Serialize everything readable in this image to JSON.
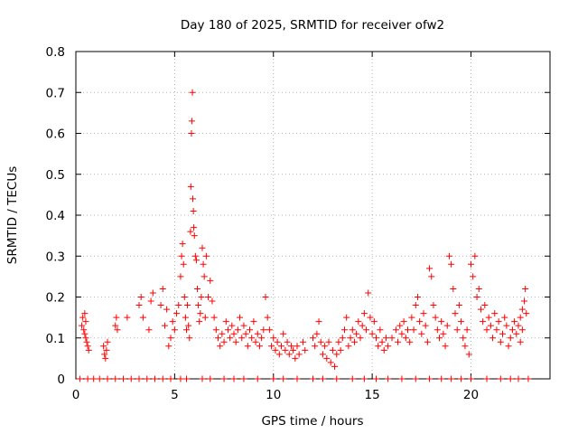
{
  "chart_data": {
    "type": "scatter",
    "title": "Day 180 of 2025, SRMTID for receiver ofw2",
    "xlabel": "GPS time / hours",
    "ylabel": "SRMTID / TECUs",
    "xlim": [
      0,
      24
    ],
    "ylim": [
      0,
      0.8
    ],
    "xticks": [
      0,
      5,
      10,
      15,
      20
    ],
    "xtick_labels": [
      "0",
      "5",
      "10",
      "15",
      "20"
    ],
    "yticks": [
      0,
      0.1,
      0.2,
      0.3,
      0.4,
      0.5,
      0.6,
      0.7,
      0.8
    ],
    "ytick_labels": [
      "0",
      "0.1",
      "0.2",
      "0.3",
      "0.4",
      "0.5",
      "0.6",
      "0.7",
      "0.8"
    ],
    "grid": true,
    "marker": "+",
    "color": "#ff0000",
    "series": [
      {
        "name": "SRMTID",
        "points": [
          [
            0.3,
            0.13
          ],
          [
            0.35,
            0.15
          ],
          [
            0.4,
            0.12
          ],
          [
            0.45,
            0.16
          ],
          [
            0.5,
            0.1
          ],
          [
            0.55,
            0.09
          ],
          [
            0.6,
            0.08
          ],
          [
            0.65,
            0.07
          ],
          [
            0.5,
            0.14
          ],
          [
            0.45,
            0.11
          ],
          [
            1.4,
            0.08
          ],
          [
            1.45,
            0.06
          ],
          [
            1.5,
            0.05
          ],
          [
            1.55,
            0.07
          ],
          [
            1.6,
            0.09
          ],
          [
            2.0,
            0.13
          ],
          [
            2.05,
            0.15
          ],
          [
            2.1,
            0.12
          ],
          [
            2.6,
            0.15
          ],
          [
            3.2,
            0.18
          ],
          [
            3.3,
            0.2
          ],
          [
            3.4,
            0.15
          ],
          [
            3.7,
            0.12
          ],
          [
            3.8,
            0.19
          ],
          [
            3.9,
            0.21
          ],
          [
            4.3,
            0.18
          ],
          [
            4.4,
            0.22
          ],
          [
            4.5,
            0.13
          ],
          [
            4.6,
            0.17
          ],
          [
            4.7,
            0.08
          ],
          [
            4.8,
            0.1
          ],
          [
            4.9,
            0.14
          ],
          [
            5.0,
            0.12
          ],
          [
            5.1,
            0.16
          ],
          [
            5.2,
            0.18
          ],
          [
            5.3,
            0.25
          ],
          [
            5.35,
            0.3
          ],
          [
            5.4,
            0.33
          ],
          [
            5.45,
            0.28
          ],
          [
            5.5,
            0.2
          ],
          [
            5.55,
            0.15
          ],
          [
            5.6,
            0.12
          ],
          [
            5.65,
            0.18
          ],
          [
            5.7,
            0.13
          ],
          [
            5.75,
            0.1
          ],
          [
            5.8,
            0.36
          ],
          [
            5.82,
            0.47
          ],
          [
            5.85,
            0.6
          ],
          [
            5.87,
            0.63
          ],
          [
            5.9,
            0.7
          ],
          [
            5.92,
            0.44
          ],
          [
            5.95,
            0.41
          ],
          [
            5.97,
            0.37
          ],
          [
            6.0,
            0.35
          ],
          [
            6.05,
            0.3
          ],
          [
            6.1,
            0.29
          ],
          [
            6.15,
            0.22
          ],
          [
            6.2,
            0.18
          ],
          [
            6.25,
            0.14
          ],
          [
            6.3,
            0.16
          ],
          [
            6.35,
            0.2
          ],
          [
            6.4,
            0.32
          ],
          [
            6.45,
            0.28
          ],
          [
            6.5,
            0.25
          ],
          [
            6.55,
            0.15
          ],
          [
            6.6,
            0.3
          ],
          [
            6.7,
            0.2
          ],
          [
            6.8,
            0.24
          ],
          [
            6.9,
            0.19
          ],
          [
            7.0,
            0.15
          ],
          [
            7.1,
            0.12
          ],
          [
            7.2,
            0.1
          ],
          [
            7.3,
            0.08
          ],
          [
            7.4,
            0.11
          ],
          [
            7.5,
            0.09
          ],
          [
            7.6,
            0.14
          ],
          [
            7.7,
            0.12
          ],
          [
            7.8,
            0.1
          ],
          [
            7.9,
            0.13
          ],
          [
            8.0,
            0.11
          ],
          [
            8.1,
            0.09
          ],
          [
            8.2,
            0.12
          ],
          [
            8.3,
            0.15
          ],
          [
            8.4,
            0.1
          ],
          [
            8.5,
            0.13
          ],
          [
            8.6,
            0.11
          ],
          [
            8.7,
            0.08
          ],
          [
            8.8,
            0.12
          ],
          [
            8.9,
            0.1
          ],
          [
            9.0,
            0.14
          ],
          [
            9.1,
            0.09
          ],
          [
            9.2,
            0.11
          ],
          [
            9.3,
            0.08
          ],
          [
            9.4,
            0.1
          ],
          [
            9.5,
            0.12
          ],
          [
            9.6,
            0.2
          ],
          [
            9.7,
            0.15
          ],
          [
            9.8,
            0.12
          ],
          [
            9.9,
            0.08
          ],
          [
            10.0,
            0.1
          ],
          [
            10.1,
            0.07
          ],
          [
            10.2,
            0.09
          ],
          [
            10.3,
            0.06
          ],
          [
            10.4,
            0.08
          ],
          [
            10.5,
            0.11
          ],
          [
            10.6,
            0.07
          ],
          [
            10.7,
            0.09
          ],
          [
            10.8,
            0.06
          ],
          [
            10.9,
            0.08
          ],
          [
            11.0,
            0.07
          ],
          [
            11.1,
            0.05
          ],
          [
            11.2,
            0.08
          ],
          [
            11.3,
            0.06
          ],
          [
            11.5,
            0.09
          ],
          [
            11.6,
            0.07
          ],
          [
            12.0,
            0.1
          ],
          [
            12.1,
            0.08
          ],
          [
            12.2,
            0.11
          ],
          [
            12.3,
            0.14
          ],
          [
            12.4,
            0.09
          ],
          [
            12.5,
            0.06
          ],
          [
            12.6,
            0.08
          ],
          [
            12.7,
            0.05
          ],
          [
            12.8,
            0.09
          ],
          [
            12.9,
            0.04
          ],
          [
            13.0,
            0.07
          ],
          [
            13.1,
            0.03
          ],
          [
            13.2,
            0.06
          ],
          [
            13.3,
            0.09
          ],
          [
            13.4,
            0.07
          ],
          [
            13.5,
            0.1
          ],
          [
            13.6,
            0.12
          ],
          [
            13.7,
            0.15
          ],
          [
            13.8,
            0.08
          ],
          [
            13.9,
            0.1
          ],
          [
            14.0,
            0.12
          ],
          [
            14.1,
            0.09
          ],
          [
            14.2,
            0.11
          ],
          [
            14.3,
            0.14
          ],
          [
            14.4,
            0.1
          ],
          [
            14.5,
            0.13
          ],
          [
            14.6,
            0.16
          ],
          [
            14.7,
            0.12
          ],
          [
            14.8,
            0.21
          ],
          [
            14.9,
            0.15
          ],
          [
            15.0,
            0.11
          ],
          [
            15.1,
            0.14
          ],
          [
            15.2,
            0.1
          ],
          [
            15.3,
            0.08
          ],
          [
            15.4,
            0.12
          ],
          [
            15.5,
            0.09
          ],
          [
            15.6,
            0.07
          ],
          [
            15.7,
            0.1
          ],
          [
            15.8,
            0.08
          ],
          [
            16.0,
            0.1
          ],
          [
            16.2,
            0.12
          ],
          [
            16.3,
            0.09
          ],
          [
            16.4,
            0.13
          ],
          [
            16.5,
            0.11
          ],
          [
            16.6,
            0.14
          ],
          [
            16.7,
            0.1
          ],
          [
            16.8,
            0.12
          ],
          [
            16.9,
            0.09
          ],
          [
            17.0,
            0.15
          ],
          [
            17.1,
            0.12
          ],
          [
            17.2,
            0.18
          ],
          [
            17.3,
            0.2
          ],
          [
            17.4,
            0.14
          ],
          [
            17.5,
            0.11
          ],
          [
            17.6,
            0.16
          ],
          [
            17.7,
            0.13
          ],
          [
            17.8,
            0.09
          ],
          [
            17.9,
            0.27
          ],
          [
            18.0,
            0.25
          ],
          [
            18.1,
            0.18
          ],
          [
            18.2,
            0.15
          ],
          [
            18.3,
            0.12
          ],
          [
            18.4,
            0.1
          ],
          [
            18.5,
            0.14
          ],
          [
            18.6,
            0.11
          ],
          [
            18.7,
            0.08
          ],
          [
            18.8,
            0.13
          ],
          [
            18.9,
            0.3
          ],
          [
            19.0,
            0.28
          ],
          [
            19.1,
            0.22
          ],
          [
            19.2,
            0.16
          ],
          [
            19.3,
            0.12
          ],
          [
            19.4,
            0.18
          ],
          [
            19.5,
            0.14
          ],
          [
            19.6,
            0.1
          ],
          [
            19.7,
            0.08
          ],
          [
            19.8,
            0.12
          ],
          [
            19.9,
            0.06
          ],
          [
            20.0,
            0.28
          ],
          [
            20.1,
            0.25
          ],
          [
            20.2,
            0.3
          ],
          [
            20.3,
            0.2
          ],
          [
            20.4,
            0.22
          ],
          [
            20.5,
            0.17
          ],
          [
            20.6,
            0.14
          ],
          [
            20.7,
            0.18
          ],
          [
            20.8,
            0.12
          ],
          [
            20.9,
            0.15
          ],
          [
            21.0,
            0.13
          ],
          [
            21.1,
            0.1
          ],
          [
            21.2,
            0.16
          ],
          [
            21.3,
            0.12
          ],
          [
            21.4,
            0.14
          ],
          [
            21.5,
            0.09
          ],
          [
            21.6,
            0.11
          ],
          [
            21.7,
            0.15
          ],
          [
            21.8,
            0.13
          ],
          [
            21.9,
            0.08
          ],
          [
            22.0,
            0.1
          ],
          [
            22.1,
            0.12
          ],
          [
            22.2,
            0.14
          ],
          [
            22.3,
            0.11
          ],
          [
            22.4,
            0.13
          ],
          [
            22.5,
            0.15
          ],
          [
            22.6,
            0.17
          ],
          [
            22.7,
            0.19
          ],
          [
            22.75,
            0.22
          ],
          [
            22.8,
            0.16
          ],
          [
            22.5,
            0.09
          ],
          [
            22.6,
            0.12
          ],
          [
            0.2,
            0
          ],
          [
            0.6,
            0
          ],
          [
            0.9,
            0
          ],
          [
            1.2,
            0
          ],
          [
            1.6,
            0
          ],
          [
            2.0,
            0
          ],
          [
            2.4,
            0
          ],
          [
            2.8,
            0
          ],
          [
            3.2,
            0
          ],
          [
            3.6,
            0
          ],
          [
            4.0,
            0
          ],
          [
            4.4,
            0
          ],
          [
            4.8,
            0
          ],
          [
            5.3,
            0
          ],
          [
            5.6,
            0
          ],
          [
            6.4,
            0
          ],
          [
            6.8,
            0
          ],
          [
            7.5,
            0
          ],
          [
            8.0,
            0
          ],
          [
            8.5,
            0
          ],
          [
            9.2,
            0
          ],
          [
            10.0,
            0
          ],
          [
            10.5,
            0
          ],
          [
            11.2,
            0
          ],
          [
            12.0,
            0
          ],
          [
            12.5,
            0
          ],
          [
            13.2,
            0
          ],
          [
            14.0,
            0
          ],
          [
            14.6,
            0
          ],
          [
            15.2,
            0
          ],
          [
            15.8,
            0
          ],
          [
            16.5,
            0
          ],
          [
            17.2,
            0
          ],
          [
            17.9,
            0
          ],
          [
            18.5,
            0
          ],
          [
            19.0,
            0
          ],
          [
            19.5,
            0
          ],
          [
            20.0,
            0
          ],
          [
            20.8,
            0
          ],
          [
            21.5,
            0
          ],
          [
            22.0,
            0
          ],
          [
            22.4,
            0
          ],
          [
            22.9,
            0
          ]
        ]
      }
    ]
  }
}
